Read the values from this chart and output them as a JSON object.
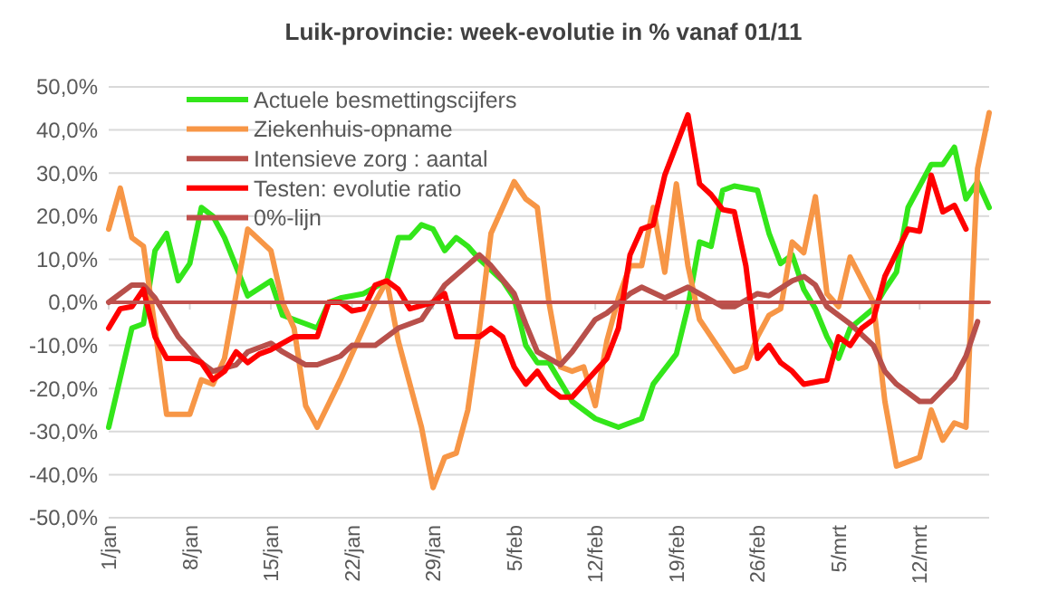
{
  "chart_data": {
    "type": "line",
    "title": "Luik-provincie: week-evolutie in %  vanaf 01/11",
    "xlim": [
      "--01-01",
      "--03-18"
    ],
    "xticks": [
      {
        "value": "--01-01",
        "label": "1/jan"
      },
      {
        "value": "--01-08",
        "label": "8/jan"
      },
      {
        "value": "--01-15",
        "label": "15/jan"
      },
      {
        "value": "--01-22",
        "label": "22/jan"
      },
      {
        "value": "--01-29",
        "label": "29/jan"
      },
      {
        "value": "--02-05",
        "label": "5/feb"
      },
      {
        "value": "--02-12",
        "label": "12/feb"
      },
      {
        "value": "--02-19",
        "label": "19/feb"
      },
      {
        "value": "--02-26",
        "label": "26/feb"
      },
      {
        "value": "--03-05",
        "label": "5/mrt"
      },
      {
        "value": "--03-12",
        "label": "12/mrt"
      }
    ],
    "ylim": [
      -50,
      50
    ],
    "yticks": [
      {
        "value": -50,
        "label": "-50,0%"
      },
      {
        "value": -40,
        "label": "-40,0%"
      },
      {
        "value": -30,
        "label": "-30,0%"
      },
      {
        "value": -20,
        "label": "-20,0%"
      },
      {
        "value": -10,
        "label": "-10,0%"
      },
      {
        "value": 0,
        "label": "0,0%"
      },
      {
        "value": 10,
        "label": "10,0%"
      },
      {
        "value": 20,
        "label": "20,0%"
      },
      {
        "value": 30,
        "label": "30,0%"
      },
      {
        "value": 40,
        "label": "40,0%"
      },
      {
        "value": 50,
        "label": "50,0%"
      }
    ],
    "grid": "y",
    "legend": "top",
    "marker": "none",
    "line_style": "solid",
    "series": [
      {
        "name": "Actuele besmettingscijfers",
        "color": "#33e61a",
        "x": [
          "--01-01",
          "--01-03",
          "--01-04",
          "--01-05",
          "--01-06",
          "--01-07",
          "--01-08",
          "--01-09",
          "--01-10",
          "--01-11",
          "--01-13",
          "--01-15",
          "--01-16",
          "--01-17",
          "--01-19",
          "--01-20",
          "--01-21",
          "--01-23",
          "--01-25",
          "--01-26",
          "--01-27",
          "--01-28",
          "--01-29",
          "--01-30",
          "--01-31",
          "--02-01",
          "--02-02",
          "--02-04",
          "--02-05",
          "--02-06",
          "--02-07",
          "--02-08",
          "--02-10",
          "--02-12",
          "--02-14",
          "--02-16",
          "--02-17",
          "--02-19",
          "--02-20",
          "--02-21",
          "--02-22",
          "--02-23",
          "--02-24",
          "--02-26",
          "--02-27",
          "--02-28",
          "--03-01",
          "--03-02",
          "--03-03",
          "--03-04",
          "--03-05",
          "--03-06",
          "--03-08",
          "--03-09",
          "--03-10",
          "--03-11",
          "--03-13",
          "--03-14",
          "--03-15",
          "--03-16",
          "--03-17",
          "--03-18"
        ],
        "values": [
          -29,
          -6,
          -5,
          12,
          16,
          5,
          9,
          22,
          20,
          15,
          1.5,
          5,
          -3,
          -4,
          -6,
          0,
          1,
          2,
          5,
          15,
          15,
          18,
          17,
          12,
          15,
          13,
          10,
          5,
          1,
          -10,
          -14,
          -14,
          -23,
          -27,
          -29,
          -27,
          -19,
          -12,
          -1,
          14,
          13,
          26,
          27,
          26,
          16,
          9,
          11,
          3,
          -1.5,
          -8,
          -13,
          -6,
          -1.5,
          3,
          7,
          22,
          32,
          32,
          36,
          24,
          28,
          22
        ]
      },
      {
        "name": "Ziekenhuis-opname",
        "color": "#f79646",
        "x": [
          "--01-01",
          "--01-02",
          "--01-03",
          "--01-04",
          "--01-05",
          "--01-06",
          "--01-08",
          "--01-09",
          "--01-10",
          "--01-11",
          "--01-12",
          "--01-13",
          "--01-15",
          "--01-16",
          "--01-17",
          "--01-18",
          "--01-19",
          "--01-21",
          "--01-23",
          "--01-24",
          "--01-25",
          "--01-26",
          "--01-28",
          "--01-29",
          "--01-30",
          "--01-31",
          "--02-01",
          "--02-02",
          "--02-03",
          "--02-05",
          "--02-06",
          "--02-07",
          "--02-08",
          "--02-09",
          "--02-10",
          "--02-11",
          "--02-12",
          "--02-13",
          "--02-14",
          "--02-15",
          "--02-16",
          "--02-17",
          "--02-18",
          "--02-19",
          "--02-20",
          "--02-21",
          "--02-24",
          "--02-25",
          "--02-26",
          "--02-27",
          "--02-28",
          "--03-01",
          "--03-02",
          "--03-03",
          "--03-04",
          "--03-05",
          "--03-06",
          "--03-08",
          "--03-09",
          "--03-10",
          "--03-12",
          "--03-13",
          "--03-14",
          "--03-15",
          "--03-16",
          "--03-17",
          "--03-18"
        ],
        "values": [
          17,
          26.5,
          15,
          13,
          -6,
          -26,
          -26,
          -18,
          -19,
          -13,
          2,
          17,
          12,
          0,
          -6,
          -24,
          -29,
          -18,
          -6,
          0,
          5,
          -9,
          -29,
          -43,
          -36,
          -35,
          -25,
          -6,
          16,
          28,
          24,
          22,
          0,
          -15,
          -16,
          -15,
          -24,
          -9,
          1,
          8.5,
          8.5,
          22,
          7,
          27.5,
          8.5,
          -4,
          -16,
          -15,
          -8,
          -3,
          -1.5,
          14,
          11.5,
          24.5,
          2,
          -1,
          10.5,
          0,
          -23,
          -38,
          -36,
          -25,
          -32,
          -28,
          -29,
          31,
          44
        ]
      },
      {
        "name": "Intensieve zorg : aantal",
        "color": "#b8504b",
        "x": [
          "--01-01",
          "--01-03",
          "--01-04",
          "--01-05",
          "--01-07",
          "--01-09",
          "--01-10",
          "--01-12",
          "--01-13",
          "--01-15",
          "--01-16",
          "--01-18",
          "--01-19",
          "--01-21",
          "--01-22",
          "--01-24",
          "--01-26",
          "--01-28",
          "--01-29",
          "--01-30",
          "--02-02",
          "--02-03",
          "--02-05",
          "--02-06",
          "--02-07",
          "--02-09",
          "--02-10",
          "--02-12",
          "--02-13",
          "--02-15",
          "--02-16",
          "--02-18",
          "--02-20",
          "--02-23",
          "--02-24",
          "--02-26",
          "--02-27",
          "--03-01",
          "--03-02",
          "--03-03",
          "--03-04",
          "--03-06",
          "--03-08",
          "--03-09",
          "--03-10",
          "--03-12",
          "--03-13",
          "--03-15",
          "--03-16",
          "--03-17"
        ],
        "values": [
          0,
          4,
          4,
          1,
          -8,
          -14,
          -16,
          -14.5,
          -11.5,
          -9.5,
          -11.5,
          -14.5,
          -14.5,
          -12.5,
          -10,
          -10,
          -6,
          -4,
          0,
          4,
          11,
          8.5,
          2,
          -5,
          -11.5,
          -14.5,
          -11.5,
          -4,
          -2.5,
          2,
          3.5,
          1,
          3.5,
          -1,
          -1,
          2,
          1.5,
          5,
          6,
          4,
          -1,
          -5,
          -10,
          -16,
          -19,
          -23,
          -23,
          -17.5,
          -12.5,
          -4.5
        ]
      },
      {
        "name": "Testen: evolutie ratio",
        "color": "#ff0000",
        "x": [
          "--01-01",
          "--01-02",
          "--01-03",
          "--01-04",
          "--01-05",
          "--01-06",
          "--01-08",
          "--01-09",
          "--01-10",
          "--01-11",
          "--01-12",
          "--01-13",
          "--01-14",
          "--01-15",
          "--01-17",
          "--01-19",
          "--01-20",
          "--01-21",
          "--01-22",
          "--01-23",
          "--01-24",
          "--01-25",
          "--01-26",
          "--01-27",
          "--01-29",
          "--01-30",
          "--01-31",
          "--02-02",
          "--02-03",
          "--02-04",
          "--02-05",
          "--02-06",
          "--02-07",
          "--02-08",
          "--02-09",
          "--02-10",
          "--02-11",
          "--02-13",
          "--02-14",
          "--02-15",
          "--02-16",
          "--02-17",
          "--02-18",
          "--02-20",
          "--02-21",
          "--02-22",
          "--02-23",
          "--02-24",
          "--02-25",
          "--02-26",
          "--02-27",
          "--02-28",
          "--03-01",
          "--03-02",
          "--03-04",
          "--03-05",
          "--03-06",
          "--03-07",
          "--03-08",
          "--03-09",
          "--03-10",
          "--03-11",
          "--03-12",
          "--03-13",
          "--03-14",
          "--03-15",
          "--03-16"
        ],
        "values": [
          -6,
          -1.5,
          -1,
          3,
          -8,
          -13,
          -13,
          -14,
          -18,
          -16,
          -11.5,
          -14,
          -12,
          -11,
          -8,
          -8,
          0,
          0,
          -2,
          -1.5,
          4,
          5,
          3,
          -1.5,
          0,
          2,
          -8,
          -8,
          -6,
          -8,
          -15,
          -19,
          -16,
          -20,
          -22,
          -22,
          -19,
          -13,
          -6,
          11,
          17,
          18,
          29.5,
          43.5,
          27.5,
          25,
          21.5,
          21,
          8.5,
          -13,
          -10,
          -14,
          -16,
          -19,
          -18,
          -8,
          -10,
          -6,
          -4,
          6,
          11.5,
          17,
          16.5,
          29.5,
          21,
          22.5,
          17
        ]
      },
      {
        "name": "0%-lijn",
        "color": "#c0504d",
        "x": [
          "--01-01",
          "--03-18"
        ],
        "values": [
          0,
          0
        ]
      }
    ]
  }
}
